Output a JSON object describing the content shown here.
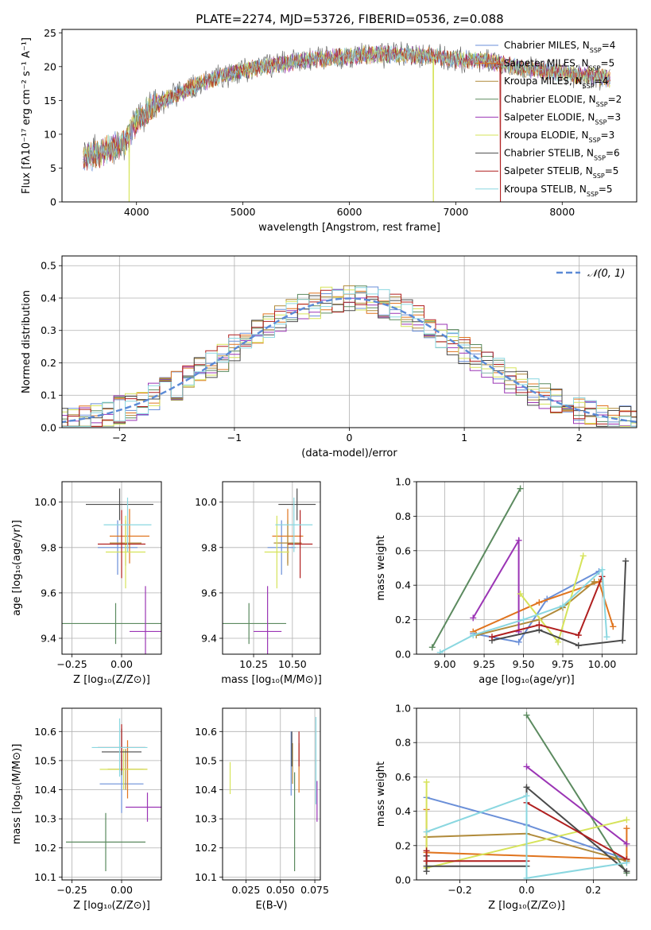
{
  "figure": {
    "title": "PLATE=2274, MJD=53726, FIBERID=0536, z=0.088"
  },
  "models": [
    {
      "name": "Chabrier MILES",
      "nssp": "4",
      "color": "#6a8fd8"
    },
    {
      "name": "Salpeter MILES",
      "nssp": "5",
      "color": "#e0741e"
    },
    {
      "name": "Kroupa MILES",
      "nssp": "4",
      "color": "#b08a3a"
    },
    {
      "name": "Chabrier ELODIE",
      "nssp": "2",
      "color": "#5b8a5f"
    },
    {
      "name": "Salpeter ELODIE",
      "nssp": "3",
      "color": "#9b35b5"
    },
    {
      "name": "Kroupa ELODIE",
      "nssp": "3",
      "color": "#d6e35a"
    },
    {
      "name": "Chabrier STELIB",
      "nssp": "6",
      "color": "#4a4a4a"
    },
    {
      "name": "Salpeter STELIB",
      "nssp": "5",
      "color": "#b01f1f"
    },
    {
      "name": "Kroupa STELIB",
      "nssp": "5",
      "color": "#8ad7e0"
    }
  ],
  "chart_data": [
    {
      "id": "spectrum",
      "type": "line",
      "title": "PLATE=2274, MJD=53726, FIBERID=0536, z=0.088",
      "xlabel": "wavelength [Angstrom, rest frame]",
      "ylabel": "Flux [fλ10⁻¹⁷ erg cm⁻² s⁻¹ A⁻¹]",
      "xlim": [
        3300,
        8700
      ],
      "ylim": [
        0,
        25.5
      ],
      "xticks": [
        4000,
        5000,
        6000,
        7000,
        8000
      ],
      "yticks": [
        0,
        5,
        10,
        15,
        20,
        25
      ],
      "continuum": [
        [
          3500,
          6.5
        ],
        [
          3700,
          7.5
        ],
        [
          3900,
          9.0
        ],
        [
          4000,
          12.0
        ],
        [
          4200,
          14.5
        ],
        [
          4400,
          16.0
        ],
        [
          4600,
          17.5
        ],
        [
          4800,
          18.5
        ],
        [
          5000,
          19.5
        ],
        [
          5200,
          20.0
        ],
        [
          5400,
          20.5
        ],
        [
          5600,
          21.0
        ],
        [
          5800,
          21.3
        ],
        [
          6000,
          21.5
        ],
        [
          6200,
          21.8
        ],
        [
          6400,
          21.8
        ],
        [
          6600,
          21.7
        ],
        [
          6800,
          21.5
        ],
        [
          7000,
          21.0
        ],
        [
          7200,
          21.0
        ],
        [
          7400,
          20.5
        ],
        [
          7600,
          19.8
        ],
        [
          7800,
          19.5
        ],
        [
          8000,
          19.0
        ],
        [
          8200,
          18.8
        ],
        [
          8400,
          18.3
        ],
        [
          8450,
          18.2
        ]
      ],
      "dips": [
        {
          "x": 3930,
          "model": "Kroupa ELODIE"
        },
        {
          "x": 6790,
          "model": "Kroupa ELODIE"
        },
        {
          "x": 7420,
          "model": "Salpeter STELIB"
        }
      ],
      "legend_position": "right"
    },
    {
      "id": "residuals",
      "type": "histogram",
      "xlabel": "(data-model)/error",
      "ylabel": "Normed distribution",
      "xlim": [
        -2.5,
        2.5
      ],
      "ylim": [
        0,
        0.53
      ],
      "xticks": [
        -2,
        -1,
        0,
        1,
        2
      ],
      "yticks": [
        0.0,
        0.1,
        0.2,
        0.3,
        0.4,
        0.5
      ],
      "reference": {
        "name": "𝒩(0, 1)",
        "mean": 0,
        "sigma": 1,
        "color": "#5b8ad6"
      },
      "legend_position": "upper right"
    },
    {
      "id": "age-vs-Z",
      "type": "errorbar",
      "xlabel": "Z [log₁₀(Z/Z⊙)]",
      "ylabel": "age [log₁₀(age/yr)]",
      "xlim": [
        -0.3,
        0.2
      ],
      "ylim": [
        9.33,
        10.09
      ],
      "xticks": [
        -0.25,
        0.0
      ],
      "yticks": [
        9.4,
        9.6,
        9.8,
        10.0
      ],
      "points": [
        {
          "model": "Chabrier MILES",
          "x": -0.02,
          "xerr": 0.1,
          "y": 9.8,
          "yerr": 0.12
        },
        {
          "model": "Salpeter MILES",
          "x": 0.04,
          "xerr": 0.1,
          "y": 9.85,
          "yerr": 0.12
        },
        {
          "model": "Kroupa MILES",
          "x": 0.02,
          "xerr": 0.08,
          "y": 9.82,
          "yerr": 0.1
        },
        {
          "model": "Chabrier ELODIE",
          "x": -0.03,
          "xerr": 0.3,
          "y": 9.465,
          "yerr": 0.09
        },
        {
          "model": "Salpeter ELODIE",
          "x": 0.12,
          "xerr": 0.08,
          "y": 9.43,
          "yerr": 0.2
        },
        {
          "model": "Kroupa ELODIE",
          "x": 0.02,
          "xerr": 0.1,
          "y": 9.78,
          "yerr": 0.16
        },
        {
          "model": "Chabrier STELIB",
          "x": -0.01,
          "xerr": 0.17,
          "y": 9.99,
          "yerr": 0.07
        },
        {
          "model": "Salpeter STELIB",
          "x": 0.0,
          "xerr": 0.12,
          "y": 9.815,
          "yerr": 0.15
        },
        {
          "model": "Kroupa STELIB",
          "x": 0.03,
          "xerr": 0.12,
          "y": 9.9,
          "yerr": 0.12
        }
      ]
    },
    {
      "id": "age-vs-mass",
      "type": "errorbar",
      "xlabel": "mass [log₁₀(M/M⊙)]",
      "ylabel": "",
      "xlim": [
        10.05,
        10.68
      ],
      "ylim": [
        9.33,
        10.09
      ],
      "xticks": [
        10.25,
        10.5
      ],
      "yticks": [
        9.4,
        9.6,
        9.8,
        10.0
      ],
      "points": [
        {
          "model": "Chabrier MILES",
          "x": 10.43,
          "xerr": 0.09,
          "y": 9.8,
          "yerr": 0.12
        },
        {
          "model": "Salpeter MILES",
          "x": 10.47,
          "xerr": 0.1,
          "y": 9.85,
          "yerr": 0.12
        },
        {
          "model": "Kroupa MILES",
          "x": 10.47,
          "xerr": 0.09,
          "y": 9.82,
          "yerr": 0.1
        },
        {
          "model": "Chabrier ELODIE",
          "x": 10.22,
          "xerr": 0.24,
          "y": 9.465,
          "yerr": 0.09
        },
        {
          "model": "Salpeter ELODIE",
          "x": 10.34,
          "xerr": 0.09,
          "y": 9.43,
          "yerr": 0.2
        },
        {
          "model": "Kroupa ELODIE",
          "x": 10.4,
          "xerr": 0.08,
          "y": 9.78,
          "yerr": 0.16
        },
        {
          "model": "Chabrier STELIB",
          "x": 10.53,
          "xerr": 0.12,
          "y": 9.99,
          "yerr": 0.07
        },
        {
          "model": "Salpeter STELIB",
          "x": 10.55,
          "xerr": 0.08,
          "y": 9.815,
          "yerr": 0.15
        },
        {
          "model": "Kroupa STELIB",
          "x": 10.51,
          "xerr": 0.12,
          "y": 9.9,
          "yerr": 0.12
        }
      ]
    },
    {
      "id": "weight-vs-age",
      "type": "line",
      "xlabel": "age [log₁₀(age/yr)]",
      "ylabel": "mass weight",
      "xlim": [
        8.82,
        10.22
      ],
      "ylim": [
        0,
        1.0
      ],
      "xticks": [
        9.0,
        9.25,
        9.5,
        9.75,
        10.0
      ],
      "yticks": [
        0.0,
        0.2,
        0.4,
        0.6,
        0.8,
        1.0
      ],
      "series": [
        {
          "model": "Chabrier MILES",
          "points": [
            [
              9.18,
              0.12
            ],
            [
              9.47,
              0.07
            ],
            [
              9.65,
              0.32
            ],
            [
              9.98,
              0.48
            ]
          ]
        },
        {
          "model": "Salpeter MILES",
          "points": [
            [
              9.18,
              0.13
            ],
            [
              9.6,
              0.3
            ],
            [
              9.98,
              0.42
            ],
            [
              10.07,
              0.16
            ]
          ]
        },
        {
          "model": "Kroupa MILES",
          "points": [
            [
              9.2,
              0.11
            ],
            [
              9.6,
              0.2
            ],
            [
              9.75,
              0.27
            ],
            [
              9.95,
              0.42
            ]
          ]
        },
        {
          "model": "Chabrier ELODIE",
          "points": [
            [
              8.92,
              0.04
            ],
            [
              9.48,
              0.96
            ]
          ]
        },
        {
          "model": "Salpeter ELODIE",
          "points": [
            [
              9.18,
              0.21
            ],
            [
              9.47,
              0.66
            ],
            [
              9.47,
              0.13
            ]
          ]
        },
        {
          "model": "Kroupa ELODIE",
          "points": [
            [
              9.48,
              0.35
            ],
            [
              9.72,
              0.07
            ],
            [
              9.88,
              0.57
            ]
          ]
        },
        {
          "model": "Chabrier STELIB",
          "points": [
            [
              9.3,
              0.08
            ],
            [
              9.6,
              0.14
            ],
            [
              9.85,
              0.05
            ],
            [
              10.13,
              0.08
            ],
            [
              10.15,
              0.54
            ]
          ]
        },
        {
          "model": "Salpeter STELIB",
          "points": [
            [
              9.3,
              0.1
            ],
            [
              9.6,
              0.17
            ],
            [
              9.85,
              0.11
            ],
            [
              10.0,
              0.45
            ]
          ]
        },
        {
          "model": "Kroupa STELIB",
          "points": [
            [
              8.97,
              0.01
            ],
            [
              9.18,
              0.11
            ],
            [
              9.5,
              0.2
            ],
            [
              9.75,
              0.28
            ],
            [
              10.0,
              0.49
            ],
            [
              10.03,
              0.1
            ]
          ]
        }
      ]
    },
    {
      "id": "mass-vs-Z",
      "type": "errorbar",
      "xlabel": "Z [log₁₀(Z/Z⊙)]",
      "ylabel": "mass [log₁₀(M/M⊙)]",
      "xlim": [
        -0.3,
        0.2
      ],
      "ylim": [
        10.09,
        10.68
      ],
      "xticks": [
        -0.25,
        0.0
      ],
      "yticks": [
        10.1,
        10.2,
        10.3,
        10.4,
        10.5,
        10.6
      ],
      "points": [
        {
          "model": "Chabrier MILES",
          "x": 0.0,
          "xerr": 0.11,
          "y": 10.42,
          "yerr": 0.1
        },
        {
          "model": "Salpeter MILES",
          "x": 0.03,
          "xerr": 0.1,
          "y": 10.47,
          "yerr": 0.1
        },
        {
          "model": "Kroupa MILES",
          "x": 0.02,
          "xerr": 0.09,
          "y": 10.47,
          "yerr": 0.07
        },
        {
          "model": "Chabrier ELODIE",
          "x": -0.08,
          "xerr": 0.2,
          "y": 10.22,
          "yerr": 0.1
        },
        {
          "model": "Salpeter ELODIE",
          "x": 0.13,
          "xerr": 0.11,
          "y": 10.34,
          "yerr": 0.05
        },
        {
          "model": "Kroupa ELODIE",
          "x": 0.01,
          "xerr": 0.12,
          "y": 10.47,
          "yerr": 0.07
        },
        {
          "model": "Chabrier STELIB",
          "x": 0.0,
          "xerr": 0.1,
          "y": 10.53,
          "yerr": 0.08
        },
        {
          "model": "Salpeter STELIB",
          "x": 0.0,
          "xerr": 0.12,
          "y": 10.545,
          "yerr": 0.08
        },
        {
          "model": "Kroupa STELIB",
          "x": -0.01,
          "xerr": 0.14,
          "y": 10.545,
          "yerr": 0.1
        }
      ]
    },
    {
      "id": "mass-vs-EBV",
      "type": "errorbar",
      "xlabel": "E(B-V)",
      "ylabel": "",
      "xlim": [
        0.008,
        0.079
      ],
      "ylim": [
        10.09,
        10.68
      ],
      "xticks": [
        0.025,
        0.05,
        0.075
      ],
      "yticks": [
        10.1,
        10.2,
        10.3,
        10.4,
        10.5,
        10.6
      ],
      "points": [
        {
          "model": "Chabrier MILES",
          "x": 0.0578,
          "xerr": 0,
          "y": 10.49,
          "yerr": 0.11
        },
        {
          "model": "Salpeter MILES",
          "x": 0.0635,
          "xerr": 0,
          "y": 10.475,
          "yerr": 0.085
        },
        {
          "model": "Kroupa MILES",
          "x": 0.0588,
          "xerr": 0,
          "y": 10.49,
          "yerr": 0.07
        },
        {
          "model": "Chabrier ELODIE",
          "x": 0.0603,
          "xerr": 0,
          "y": 10.29,
          "yerr": 0.17
        },
        {
          "model": "Salpeter ELODIE",
          "x": 0.0766,
          "xerr": 0,
          "y": 10.36,
          "yerr": 0.07
        },
        {
          "model": "Kroupa ELODIE",
          "x": 0.0135,
          "xerr": 0,
          "y": 10.44,
          "yerr": 0.055
        },
        {
          "model": "Chabrier STELIB",
          "x": 0.0583,
          "xerr": 0,
          "y": 10.54,
          "yerr": 0.06
        },
        {
          "model": "Salpeter STELIB",
          "x": 0.0635,
          "xerr": 0,
          "y": 10.54,
          "yerr": 0.06
        },
        {
          "model": "Kroupa STELIB",
          "x": 0.0758,
          "xerr": 0,
          "y": 10.5,
          "yerr": 0.15
        }
      ]
    },
    {
      "id": "weight-vs-Z",
      "type": "line",
      "xlabel": "Z [log₁₀(Z/Z⊙)]",
      "ylabel": "mass weight",
      "xlim": [
        -0.33,
        0.33
      ],
      "ylim": [
        0,
        1.0
      ],
      "xticks": [
        -0.2,
        0.0,
        0.2
      ],
      "yticks": [
        0.0,
        0.2,
        0.4,
        0.6,
        0.8,
        1.0
      ],
      "series": [
        {
          "model": "Chabrier MILES",
          "points": [
            [
              -0.3,
              0.48
            ],
            [
              0.0,
              0.32
            ],
            [
              0.3,
              0.12
            ]
          ]
        },
        {
          "model": "Salpeter MILES",
          "points": [
            [
              -0.3,
              0.41
            ],
            [
              -0.3,
              0.16
            ],
            [
              0.3,
              0.12
            ],
            [
              0.3,
              0.3
            ]
          ]
        },
        {
          "model": "Kroupa MILES",
          "points": [
            [
              -0.3,
              0.25
            ],
            [
              0.0,
              0.27
            ],
            [
              0.3,
              0.11
            ]
          ]
        },
        {
          "model": "Chabrier ELODIE",
          "points": [
            [
              0.0,
              0.96
            ],
            [
              0.3,
              0.04
            ]
          ]
        },
        {
          "model": "Salpeter ELODIE",
          "points": [
            [
              0.0,
              0.66
            ],
            [
              0.3,
              0.21
            ]
          ]
        },
        {
          "model": "Kroupa ELODIE",
          "points": [
            [
              -0.3,
              0.57
            ],
            [
              -0.3,
              0.07
            ],
            [
              0.3,
              0.35
            ]
          ]
        },
        {
          "model": "Chabrier STELIB",
          "points": [
            [
              -0.3,
              0.14
            ],
            [
              -0.3,
              0.05
            ],
            [
              -0.3,
              0.08
            ],
            [
              0.0,
              0.08
            ],
            [
              0.0,
              0.54
            ],
            [
              0.3,
              0.05
            ]
          ]
        },
        {
          "model": "Salpeter STELIB",
          "points": [
            [
              -0.3,
              0.17
            ],
            [
              -0.3,
              0.11
            ],
            [
              0.0,
              0.11
            ],
            [
              0.0,
              0.45
            ],
            [
              0.3,
              0.12
            ]
          ]
        },
        {
          "model": "Kroupa STELIB",
          "points": [
            [
              -0.3,
              0.28
            ],
            [
              0.0,
              0.49
            ],
            [
              0.0,
              0.01
            ],
            [
              0.3,
              0.1
            ]
          ]
        }
      ]
    }
  ]
}
